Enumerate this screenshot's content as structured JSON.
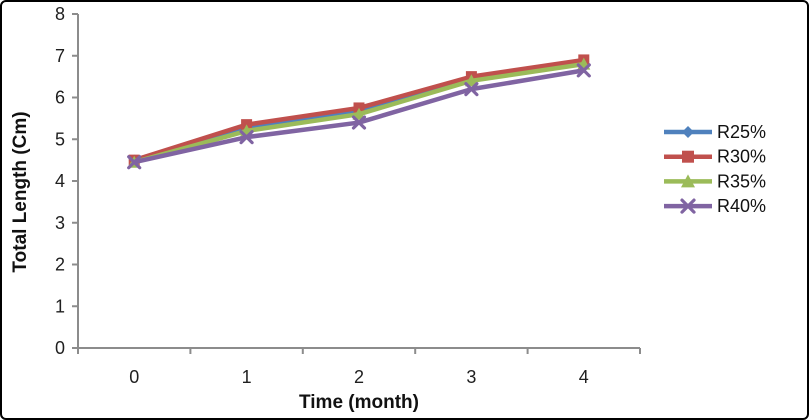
{
  "chart_data": {
    "type": "line",
    "title": "",
    "xlabel": "Time (month)",
    "ylabel": "Total Length (Cm)",
    "categories": [
      0,
      1,
      2,
      3,
      4
    ],
    "x_tick_labels": [
      "0",
      "1",
      "2",
      "3",
      "4"
    ],
    "y_ticks": [
      0,
      1,
      2,
      3,
      4,
      5,
      6,
      7,
      8
    ],
    "ylim": [
      0,
      8
    ],
    "grid": false,
    "legend_position": "right",
    "axis_color": "#8c8c8c",
    "text_color": "#1f1f1f",
    "series": [
      {
        "name": "R25%",
        "color": "#4F81BD",
        "marker": "diamond",
        "values": [
          4.5,
          5.3,
          5.7,
          6.45,
          6.85
        ]
      },
      {
        "name": "R30%",
        "color": "#C0504D",
        "marker": "square",
        "values": [
          4.5,
          5.35,
          5.75,
          6.5,
          6.9
        ]
      },
      {
        "name": "R35%",
        "color": "#9BBB59",
        "marker": "triangle",
        "values": [
          4.45,
          5.2,
          5.6,
          6.4,
          6.8
        ]
      },
      {
        "name": "R40%",
        "color": "#8064A2",
        "marker": "x",
        "values": [
          4.45,
          5.05,
          5.4,
          6.2,
          6.65
        ]
      }
    ]
  },
  "frame": {
    "background": "#ffffff",
    "border_color": "#000000"
  }
}
